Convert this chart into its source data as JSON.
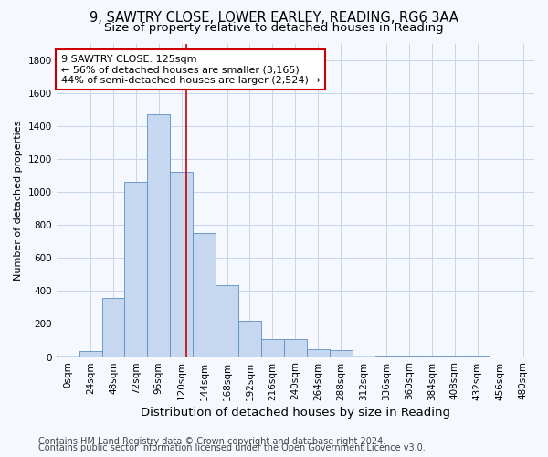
{
  "title_line1": "9, SAWTRY CLOSE, LOWER EARLEY, READING, RG6 3AA",
  "title_line2": "Size of property relative to detached houses in Reading",
  "xlabel": "Distribution of detached houses by size in Reading",
  "ylabel": "Number of detached properties",
  "bin_labels": [
    "0sqm",
    "24sqm",
    "48sqm",
    "72sqm",
    "96sqm",
    "120sqm",
    "144sqm",
    "168sqm",
    "192sqm",
    "216sqm",
    "240sqm",
    "264sqm",
    "288sqm",
    "312sqm",
    "336sqm",
    "360sqm",
    "384sqm",
    "408sqm",
    "432sqm",
    "456sqm",
    "480sqm"
  ],
  "bar_values": [
    10,
    35,
    355,
    1060,
    1470,
    1120,
    750,
    435,
    220,
    108,
    108,
    50,
    40,
    10,
    5,
    3,
    2,
    1,
    1,
    0,
    0
  ],
  "bar_color": "#c5d8f0",
  "bar_edge_color": "#5a8fc0",
  "annotation_line1": "9 SAWTRY CLOSE: 125sqm",
  "annotation_line2": "← 56% of detached houses are smaller (3,165)",
  "annotation_line3": "44% of semi-detached houses are larger (2,524) →",
  "annotation_box_facecolor": "#ffffff",
  "annotation_box_edgecolor": "#cc0000",
  "vline_color": "#cc0000",
  "vline_x": 5.21,
  "ylim_max": 1900,
  "yticks": [
    0,
    200,
    400,
    600,
    800,
    1000,
    1200,
    1400,
    1600,
    1800
  ],
  "footnote_line1": "Contains HM Land Registry data © Crown copyright and database right 2024.",
  "footnote_line2": "Contains public sector information licensed under the Open Government Licence v3.0.",
  "bg_color": "#f5f8ff",
  "grid_color": "#c8d4e8",
  "title_fontsize": 10.5,
  "subtitle_fontsize": 9.5,
  "xlabel_fontsize": 9.5,
  "ylabel_fontsize": 8,
  "tick_fontsize": 7.5,
  "annot_fontsize": 8,
  "footnote_fontsize": 7
}
